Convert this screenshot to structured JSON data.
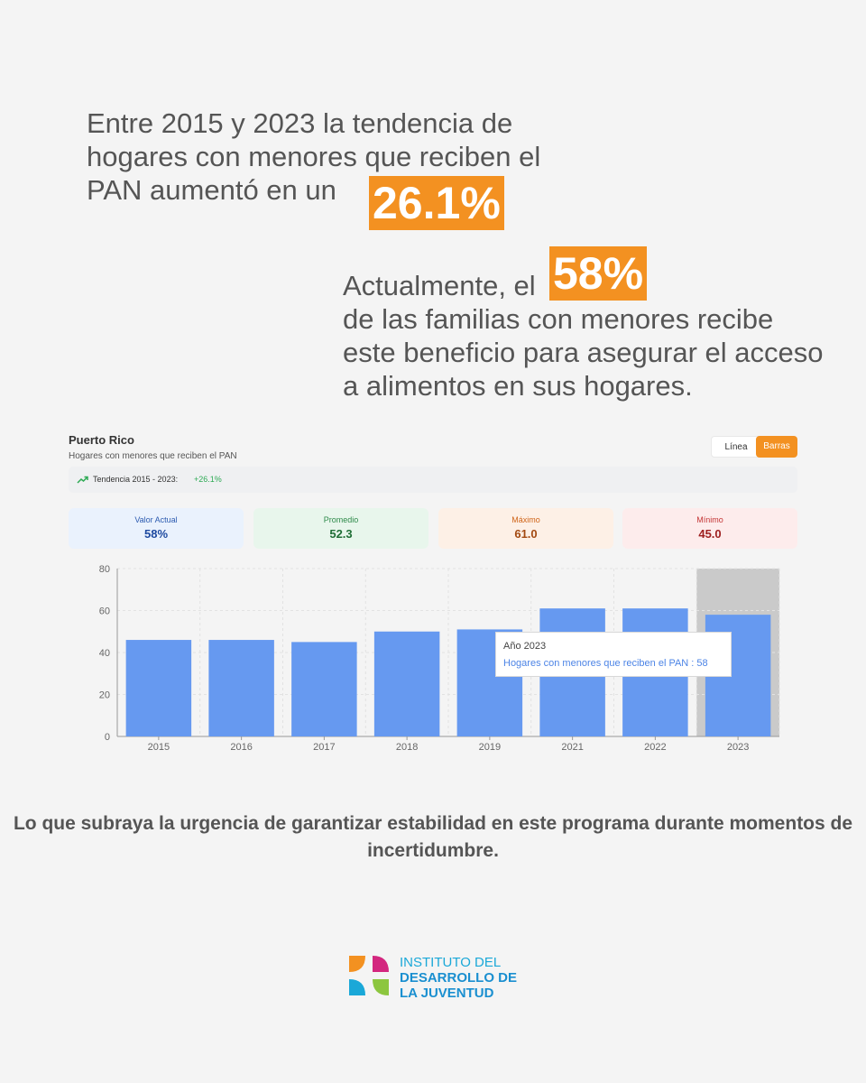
{
  "headline_1": {
    "text": "Entre 2015 y 2023 la tendencia de hogares con menores que reciben el PAN aumentó en un",
    "highlight": "26.1%"
  },
  "headline_2": {
    "prefix": "Actualmente, el",
    "highlight": "58%",
    "text": "de las familias con menores recibe este beneficio para asegurar el acceso a alimentos en sus hogares."
  },
  "card": {
    "title": "Puerto Rico",
    "subtitle": "Hogares con menores que reciben el PAN",
    "toggle_line": "Línea",
    "toggle_bars": "Barras",
    "trend_label": "Tendencia 2015 - 2023:",
    "trend_value": "+26.1%",
    "stats": [
      {
        "label": "Valor Actual",
        "value": "58%"
      },
      {
        "label": "Promedio",
        "value": "52.3"
      },
      {
        "label": "Máximo",
        "value": "61.0"
      },
      {
        "label": "Mínimo",
        "value": "45.0"
      }
    ]
  },
  "chart_data": {
    "type": "bar",
    "categories": [
      "2015",
      "2016",
      "2017",
      "2018",
      "2019",
      "2021",
      "2022",
      "2023"
    ],
    "series": [
      {
        "name": "Hogares con menores que reciben el PAN",
        "values": [
          46,
          46,
          45,
          50,
          51,
          61,
          61,
          58
        ]
      }
    ],
    "ylim": [
      0,
      80
    ],
    "yticks": [
      0,
      20,
      40,
      60,
      80
    ],
    "grid": true,
    "highlight_category": "2023",
    "bar_color": "#6699f0",
    "tooltip": {
      "title": "Año 2023",
      "value": "Hogares con menores que reciben el PAN : 58"
    }
  },
  "closing_text": "Lo que subraya la urgencia de garantizar estabilidad en este programa durante momentos de incertidumbre.",
  "logo": {
    "line_1": "INSTITUTO DEL",
    "line_2": "DESARROLLO DE",
    "line_3": "LA JUVENTUD"
  },
  "colors": {
    "accent": "#f39121",
    "bar": "#6699f0",
    "trend_positive": "#2eaa55"
  }
}
